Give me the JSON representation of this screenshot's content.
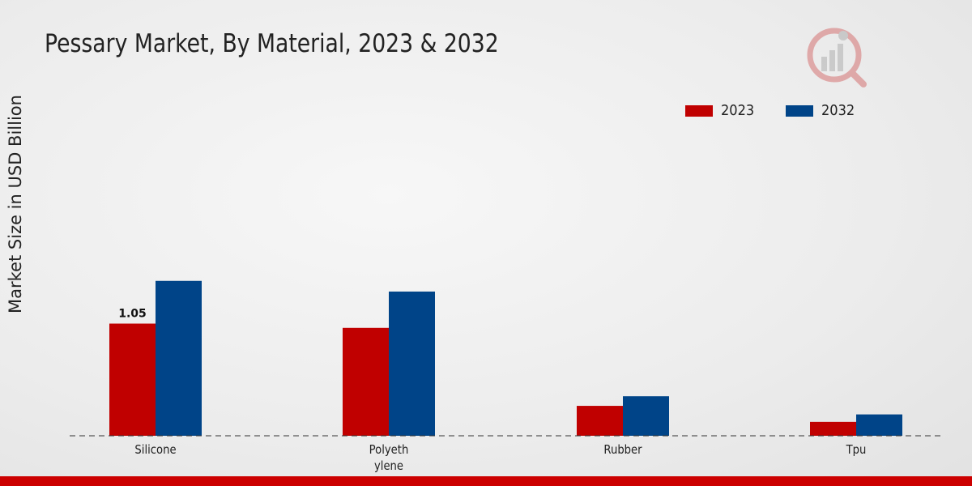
{
  "title": "Pessary Market, By Material, 2023 & 2032",
  "colors": {
    "2023": "#c00000",
    "2032": "#004488",
    "accent_bar": "#cc0000"
  },
  "icons": {
    "logo": "brand-logo-icon"
  },
  "chart_data": {
    "type": "bar",
    "title": "Pessary Market, By Material, 2023 & 2032",
    "ylabel": "Market Size in USD Billion",
    "xlabel": "",
    "categories": [
      "Silicone",
      "Polyeth\nylene",
      "Rubber",
      "Tpu"
    ],
    "series": [
      {
        "name": "2023",
        "color": "#c00000",
        "values": [
          1.05,
          1.01,
          0.28,
          0.13
        ]
      },
      {
        "name": "2032",
        "color": "#004488",
        "values": [
          1.45,
          1.35,
          0.37,
          0.2
        ]
      }
    ],
    "data_labels": [
      {
        "series": "2023",
        "category": "Silicone",
        "text": "1.05"
      }
    ],
    "ylim": [
      0,
      3.7
    ],
    "grid": false,
    "legend": "top-right"
  }
}
